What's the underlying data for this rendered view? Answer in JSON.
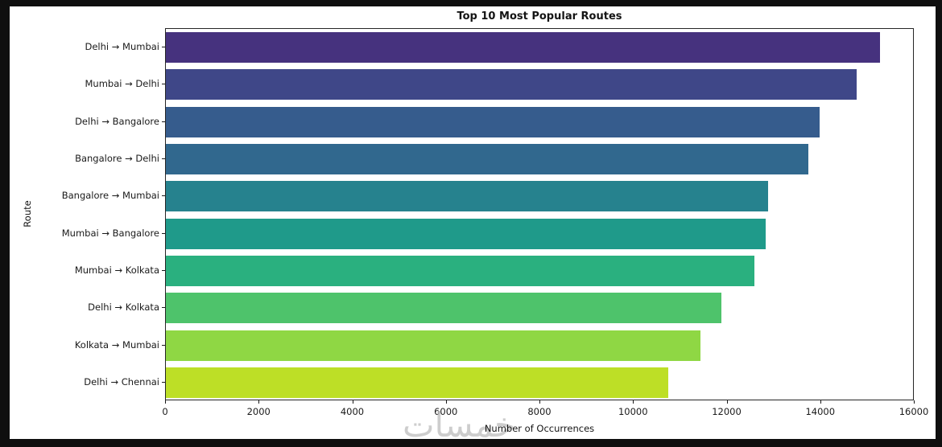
{
  "chart_data": {
    "type": "bar",
    "orientation": "horizontal",
    "title": "Top 10 Most Popular Routes",
    "xlabel": "Number of Occurrences",
    "ylabel": "Route",
    "categories": [
      "Delhi → Mumbai",
      "Mumbai → Delhi",
      "Delhi → Bangalore",
      "Bangalore → Delhi",
      "Bangalore → Mumbai",
      "Mumbai → Bangalore",
      "Mumbai → Kolkata",
      "Delhi → Kolkata",
      "Kolkata → Mumbai",
      "Delhi → Chennai"
    ],
    "values": [
      15300,
      14800,
      14000,
      13750,
      12900,
      12850,
      12600,
      11900,
      11450,
      10750
    ],
    "bar_colors": [
      "#46327e",
      "#3f4788",
      "#365c8d",
      "#31688e",
      "#26828e",
      "#1f9a8a",
      "#2ab07f",
      "#4ec36b",
      "#8fd744",
      "#bddf26"
    ],
    "xlim": [
      0,
      16000
    ],
    "xticks": [
      0,
      2000,
      4000,
      6000,
      8000,
      10000,
      12000,
      14000,
      16000
    ],
    "grid": false,
    "legend_position": "none"
  },
  "watermark": {
    "text": "خمسات"
  },
  "colors": {
    "frame_background": "#0f0f0f",
    "figure_background": "#ffffff",
    "axis_line": "#262626",
    "text": "#141414",
    "watermark": "#bdbdbd"
  }
}
